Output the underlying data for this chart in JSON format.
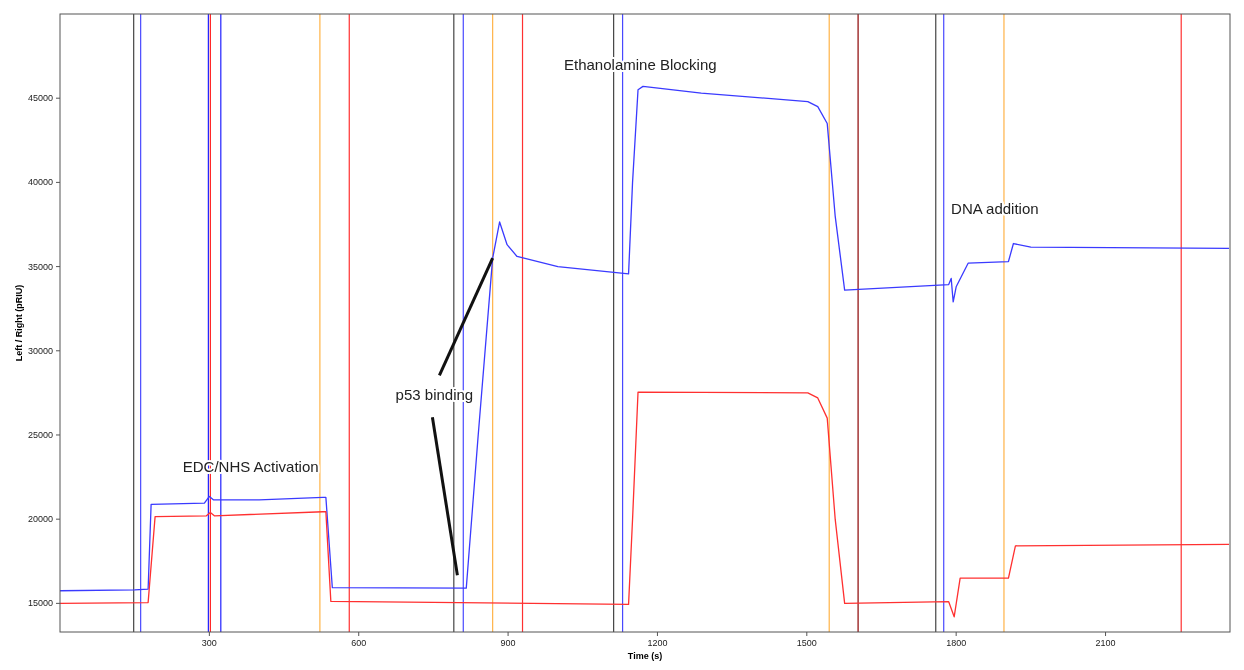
{
  "chart_data": {
    "type": "line",
    "xlabel": "Time (s)",
    "ylabel": "Left / Right (pRIU)",
    "xlim": [
      0,
      2350
    ],
    "xticks": [
      300,
      600,
      900,
      1200,
      1500,
      1800,
      2100
    ],
    "ylim": [
      13300,
      50000
    ],
    "yticks": [
      15000,
      20000,
      25000,
      30000,
      35000,
      40000,
      45000
    ],
    "grid": false,
    "line_style": "solid",
    "series": [
      {
        "color": "#3a3aff",
        "x": [
          0,
          150,
          177,
          183,
          290,
          300,
          308,
          400,
          528,
          534,
          547,
          816,
          840,
          869,
          883,
          898,
          918,
          1000,
          1142,
          1150,
          1161,
          1171,
          1288,
          1502,
          1522,
          1541,
          1557,
          1576,
          1785,
          1790,
          1794,
          1800,
          1824,
          1905,
          1915,
          1950,
          2348
        ],
        "values": [
          15750,
          15800,
          15850,
          20880,
          20950,
          21350,
          21150,
          21150,
          21300,
          21300,
          15930,
          15900,
          25000,
          35500,
          37650,
          36300,
          35600,
          35000,
          34570,
          40000,
          45500,
          45700,
          45300,
          44800,
          44500,
          43500,
          38000,
          33600,
          33930,
          34300,
          32900,
          33800,
          35200,
          35300,
          36370,
          36150,
          36080
        ]
      },
      {
        "color": "#ff3030",
        "x": [
          0,
          177,
          191,
          294,
          302,
          310,
          528,
          534,
          544,
          1142,
          1150,
          1161,
          1502,
          1522,
          1541,
          1557,
          1576,
          1785,
          1796,
          1808,
          1905,
          1919,
          2348
        ],
        "values": [
          15000,
          15050,
          20150,
          20200,
          20400,
          20200,
          20440,
          20440,
          15120,
          14940,
          20000,
          27550,
          27500,
          27200,
          26000,
          20000,
          15000,
          15100,
          14200,
          16500,
          16500,
          18420,
          18500
        ]
      }
    ],
    "ref_lines": [
      {
        "axis": "x",
        "value": 148,
        "color": "#444444"
      },
      {
        "axis": "x",
        "value": 162,
        "color": "#4848ff"
      },
      {
        "axis": "x",
        "value": 298,
        "color": "#2020ff"
      },
      {
        "axis": "x",
        "value": 302,
        "color": "#ff2020"
      },
      {
        "axis": "x",
        "value": 323,
        "color": "#2020ff"
      },
      {
        "axis": "x",
        "value": 522,
        "color": "#ffb347"
      },
      {
        "axis": "x",
        "value": 581,
        "color": "#ff3030"
      },
      {
        "axis": "x",
        "value": 791,
        "color": "#444444"
      },
      {
        "axis": "x",
        "value": 810,
        "color": "#4848ff"
      },
      {
        "axis": "x",
        "value": 869,
        "color": "#ffb347"
      },
      {
        "axis": "x",
        "value": 929,
        "color": "#ff3030"
      },
      {
        "axis": "x",
        "value": 1112,
        "color": "#444444"
      },
      {
        "axis": "x",
        "value": 1130,
        "color": "#4848ff"
      },
      {
        "axis": "x",
        "value": 1545,
        "color": "#ffb347"
      },
      {
        "axis": "x",
        "value": 1603,
        "color": "#8b0000"
      },
      {
        "axis": "x",
        "value": 1759,
        "color": "#444444"
      },
      {
        "axis": "x",
        "value": 1775,
        "color": "#4848ff"
      },
      {
        "axis": "x",
        "value": 1896,
        "color": "#ffb347"
      },
      {
        "axis": "x",
        "value": 2252,
        "color": "#ff3030"
      }
    ],
    "annotations": [
      "EDC/NHS Activation",
      {
        "text": "p53 binding",
        "x": 869,
        "y": 35500
      },
      "Ethanolamine Blocking",
      "DNA addition"
    ]
  }
}
